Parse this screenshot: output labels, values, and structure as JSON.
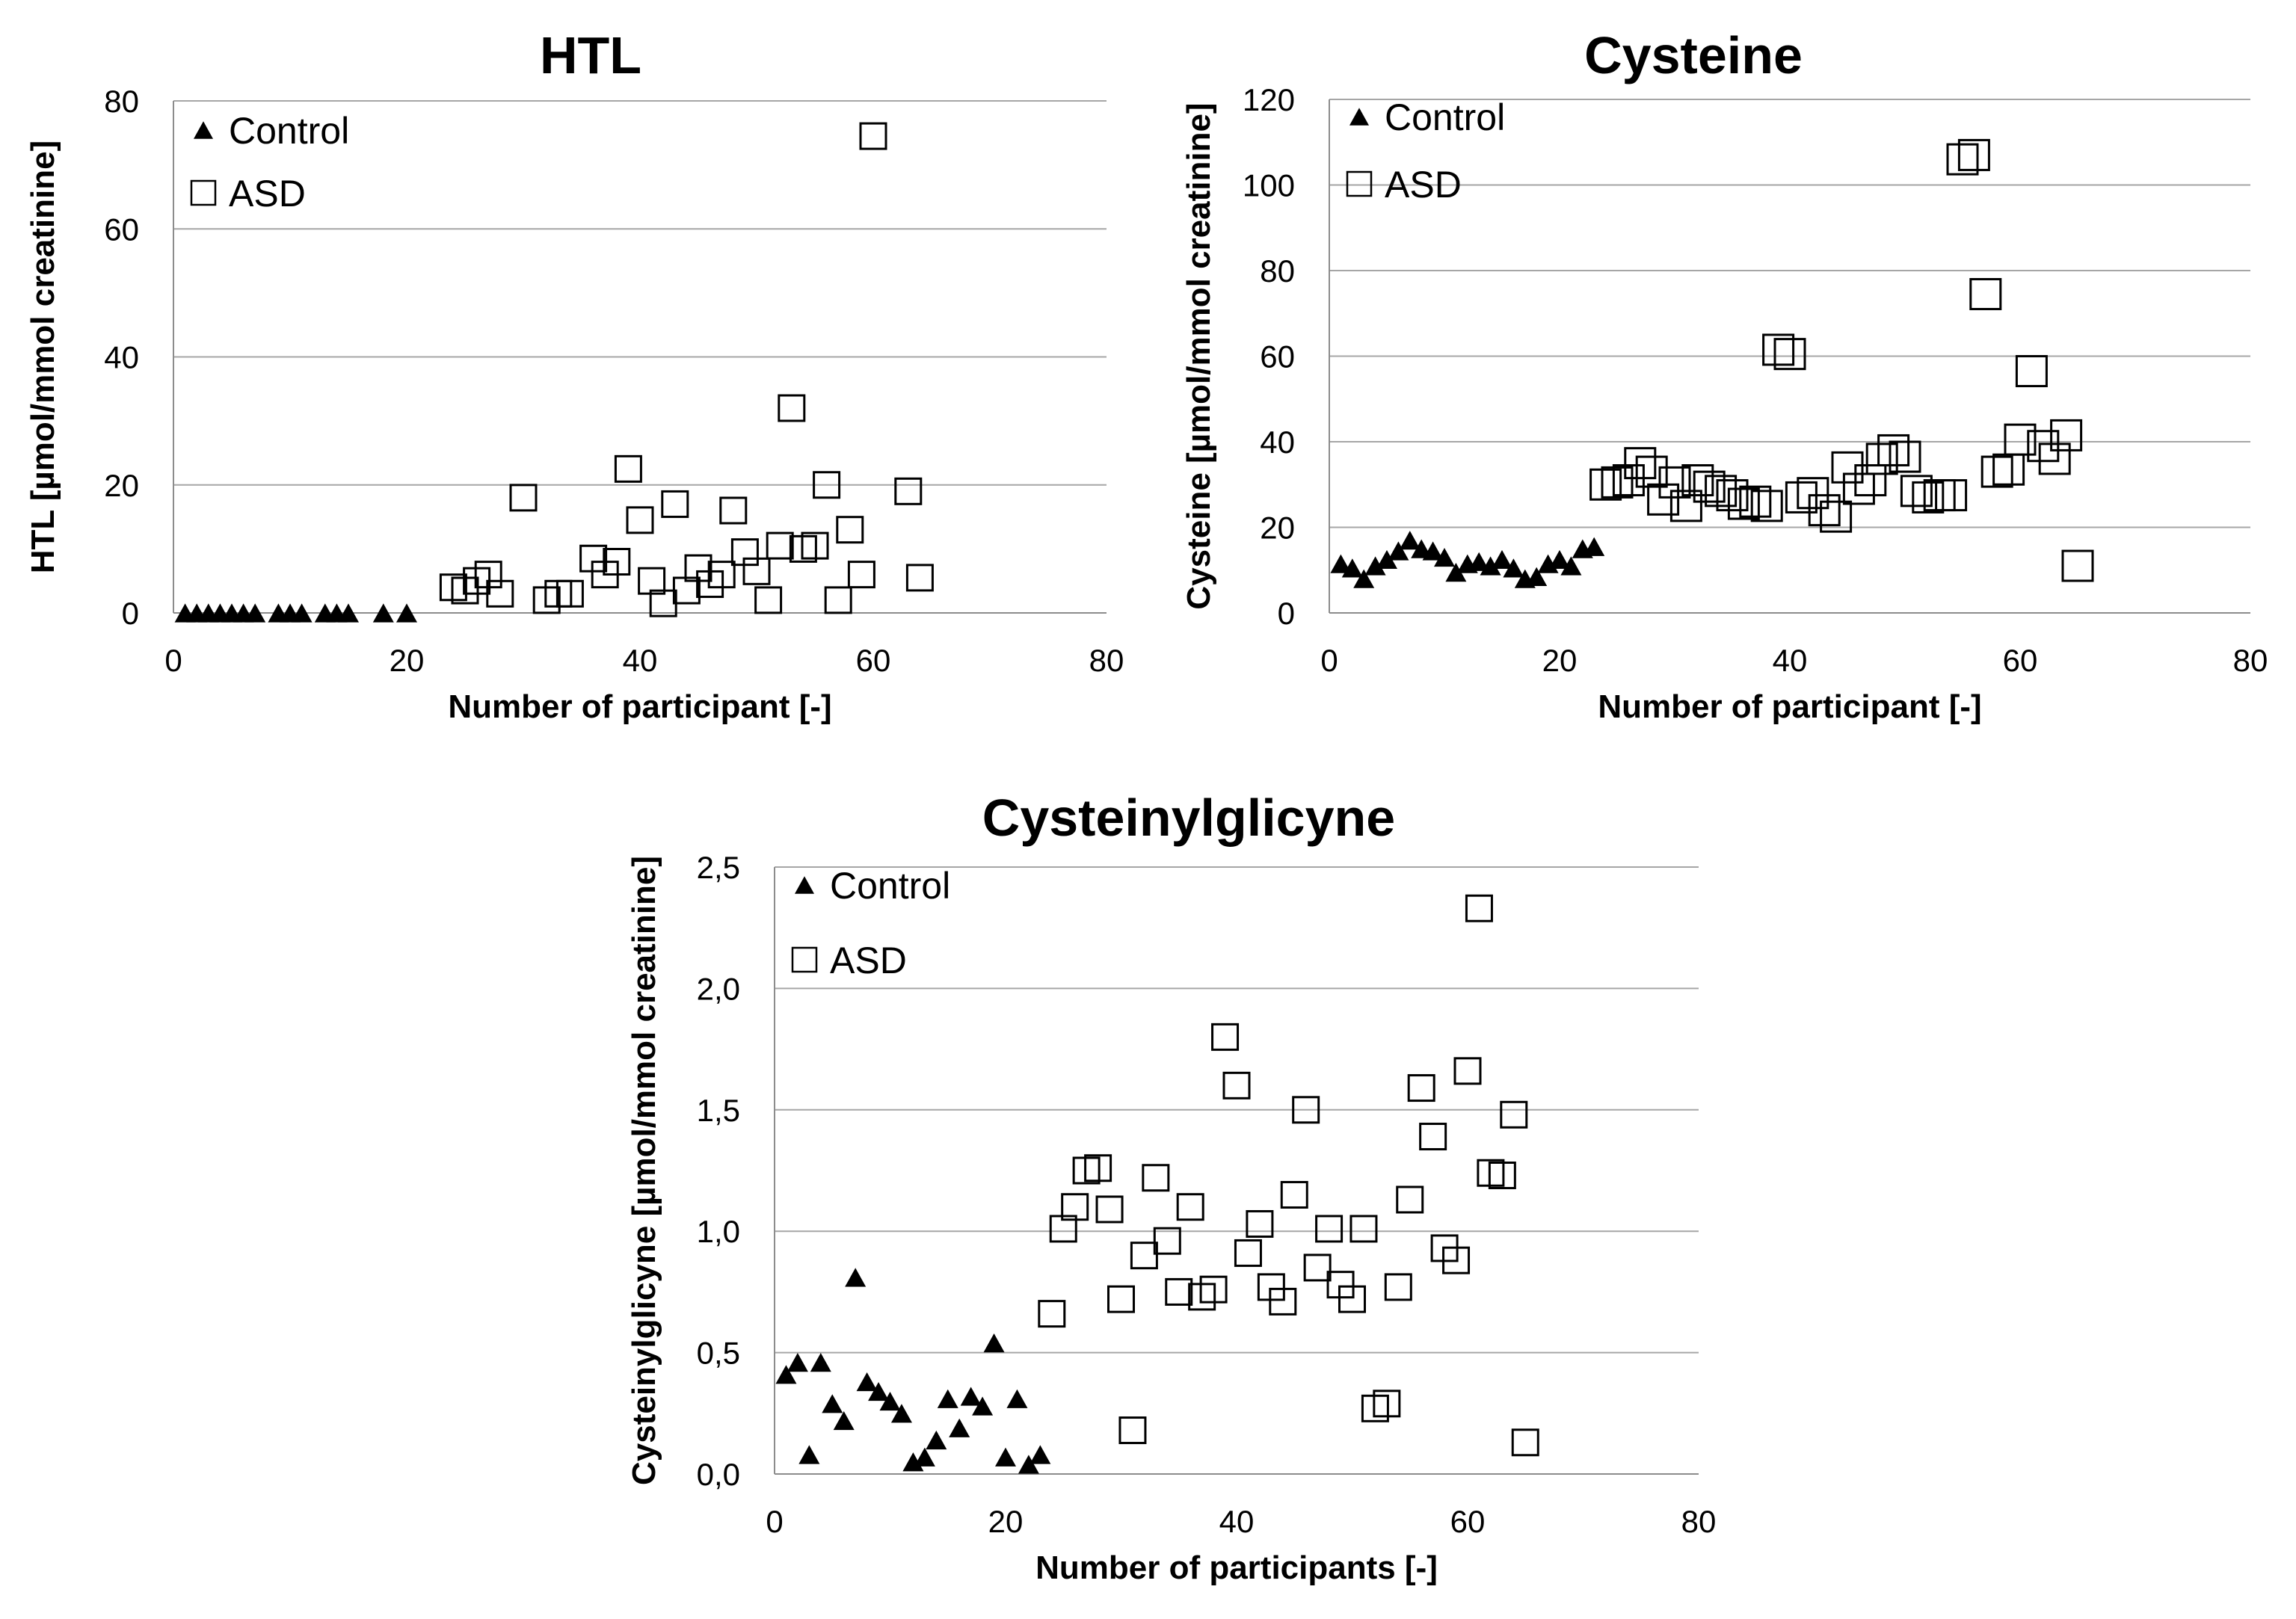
{
  "chart_data": [
    {
      "id": "htl",
      "type": "scatter",
      "title": "HTL",
      "xlabel": "Number of participant [-]",
      "ylabel": "HTL [µmol/mmol creatinine]",
      "xlim": [
        0,
        80
      ],
      "ylim": [
        0,
        80
      ],
      "xticks": [
        0,
        20,
        40,
        60,
        80
      ],
      "yticks": [
        0,
        20,
        40,
        60,
        80
      ],
      "xtick_labels": [
        "0",
        "20",
        "40",
        "60",
        "80"
      ],
      "ytick_labels": [
        "0",
        "20",
        "40",
        "60",
        "80"
      ],
      "grid": "horizontal",
      "legend_position": "top-left",
      "series": [
        {
          "name": "Control",
          "marker": "filled-triangle",
          "x": [
            1,
            2,
            3,
            4,
            5,
            6,
            7,
            9,
            10,
            11,
            13,
            14,
            15,
            18,
            20
          ],
          "y": [
            0,
            0,
            0,
            0,
            0,
            0,
            0,
            0,
            0,
            0,
            0,
            0,
            0,
            0,
            0
          ]
        },
        {
          "name": "ASD",
          "marker": "open-square",
          "x": [
            24,
            25,
            26,
            27,
            28,
            30,
            32,
            33,
            34,
            36,
            37,
            38,
            39,
            40,
            41,
            42,
            43,
            44,
            45,
            46,
            47,
            48,
            49,
            50,
            51,
            52,
            53,
            54,
            55,
            56,
            57,
            58,
            59,
            60,
            63,
            64
          ],
          "y": [
            4,
            3.5,
            5,
            6,
            3,
            18,
            2,
            3,
            3,
            8.5,
            6,
            8,
            22.5,
            14.5,
            5,
            1.5,
            17,
            3.5,
            7,
            4.5,
            6,
            16,
            9.5,
            6.5,
            2,
            10.5,
            32,
            10,
            10.5,
            20,
            2,
            13,
            6,
            74.5,
            19,
            5.5
          ]
        }
      ]
    },
    {
      "id": "cysteine",
      "type": "scatter",
      "title": "Cysteine",
      "xlabel": "Number of participant [-]",
      "ylabel": "Cysteine [µmol/mmol creatinine]",
      "xlim": [
        0,
        80
      ],
      "ylim": [
        0,
        120
      ],
      "xticks": [
        0,
        20,
        40,
        60,
        80
      ],
      "yticks": [
        0,
        20,
        40,
        60,
        80,
        100,
        120
      ],
      "xtick_labels": [
        "0",
        "20",
        "40",
        "60",
        "80"
      ],
      "ytick_labels": [
        "0",
        "20",
        "40",
        "60",
        "80",
        "100",
        "120"
      ],
      "grid": "horizontal",
      "legend_position": "top-left",
      "series": [
        {
          "name": "Control",
          "marker": "filled-triangle",
          "x": [
            1,
            2,
            3,
            4,
            5,
            6,
            7,
            8,
            9,
            10,
            11,
            12,
            13,
            14,
            15,
            16,
            17,
            18,
            19,
            20,
            21,
            22,
            23
          ],
          "y": [
            11.5,
            10.5,
            8,
            11,
            12.5,
            14.5,
            17,
            15,
            14.5,
            13,
            9.5,
            11.5,
            12,
            11,
            12.5,
            10.5,
            8,
            8.5,
            11.5,
            12.5,
            11,
            15,
            15.5
          ]
        },
        {
          "name": "ASD",
          "marker": "open-square",
          "x": [
            24,
            25,
            26,
            27,
            28,
            29,
            30,
            31,
            32,
            33,
            34,
            35,
            36,
            37,
            38,
            39,
            40,
            41,
            42,
            43,
            44,
            45,
            46,
            47,
            48,
            49,
            50,
            51,
            52,
            53,
            54,
            55,
            56,
            57,
            58,
            59,
            60,
            61,
            62,
            63,
            64,
            65
          ],
          "y": [
            30,
            30.5,
            31,
            35,
            33,
            26.5,
            30.5,
            25,
            31,
            29.5,
            28.5,
            27.5,
            25.5,
            26,
            25,
            61.5,
            60.5,
            27,
            28,
            24,
            22.5,
            34,
            29,
            31,
            36,
            38,
            36.5,
            28.5,
            27,
            27.5,
            27.5,
            106,
            107,
            74.5,
            33,
            33.5,
            40.5,
            56.5,
            39,
            36,
            41.5,
            11
          ]
        }
      ]
    },
    {
      "id": "cysteinylglicyne",
      "type": "scatter",
      "title": "Cysteinylglicyne",
      "xlabel": "Number of participants [-]",
      "ylabel": "Cysteinylglicyne [µmol/mmol creatinine]",
      "xlim": [
        0,
        80
      ],
      "ylim": [
        0,
        2.5
      ],
      "xticks": [
        0,
        20,
        40,
        60,
        80
      ],
      "yticks": [
        0,
        0.5,
        1,
        1.5,
        2,
        2.5
      ],
      "xtick_labels": [
        "0",
        "20",
        "40",
        "60",
        "80"
      ],
      "ytick_labels": [
        "0,0",
        "0,5",
        "1,0",
        "1,5",
        "2,0",
        "2,5"
      ],
      "grid": "horizontal",
      "legend_position": "top-left",
      "series": [
        {
          "name": "Control",
          "marker": "filled-triangle",
          "x": [
            1,
            2,
            3,
            4,
            5,
            6,
            7,
            8,
            9,
            10,
            11,
            12,
            13,
            14,
            15,
            16,
            17,
            18,
            19,
            20,
            21,
            22,
            23
          ],
          "y": [
            0.41,
            0.46,
            0.08,
            0.46,
            0.29,
            0.22,
            0.81,
            0.38,
            0.34,
            0.3,
            0.25,
            0.05,
            0.07,
            0.14,
            0.31,
            0.19,
            0.32,
            0.28,
            0.54,
            0.07,
            0.31,
            0.04,
            0.08
          ]
        },
        {
          "name": "ASD",
          "marker": "open-square",
          "x": [
            24,
            25,
            26,
            27,
            28,
            29,
            30,
            31,
            32,
            33,
            34,
            35,
            36,
            37,
            38,
            39,
            40,
            41,
            42,
            43,
            44,
            45,
            46,
            47,
            48,
            49,
            50,
            51,
            52,
            53,
            54,
            55,
            56,
            57,
            58,
            59,
            60,
            61,
            62,
            63,
            64,
            65
          ],
          "y": [
            0.66,
            1.01,
            1.1,
            1.25,
            1.26,
            1.09,
            0.72,
            0.18,
            0.9,
            1.22,
            0.96,
            0.75,
            1.1,
            0.73,
            0.76,
            1.8,
            1.6,
            0.91,
            1.03,
            0.77,
            0.71,
            1.15,
            1.5,
            0.85,
            1.01,
            0.78,
            0.72,
            1.01,
            0.27,
            0.29,
            0.77,
            1.13,
            1.59,
            1.39,
            0.93,
            0.88,
            1.66,
            2.33,
            1.24,
            1.23,
            1.48,
            0.13
          ]
        }
      ]
    }
  ]
}
